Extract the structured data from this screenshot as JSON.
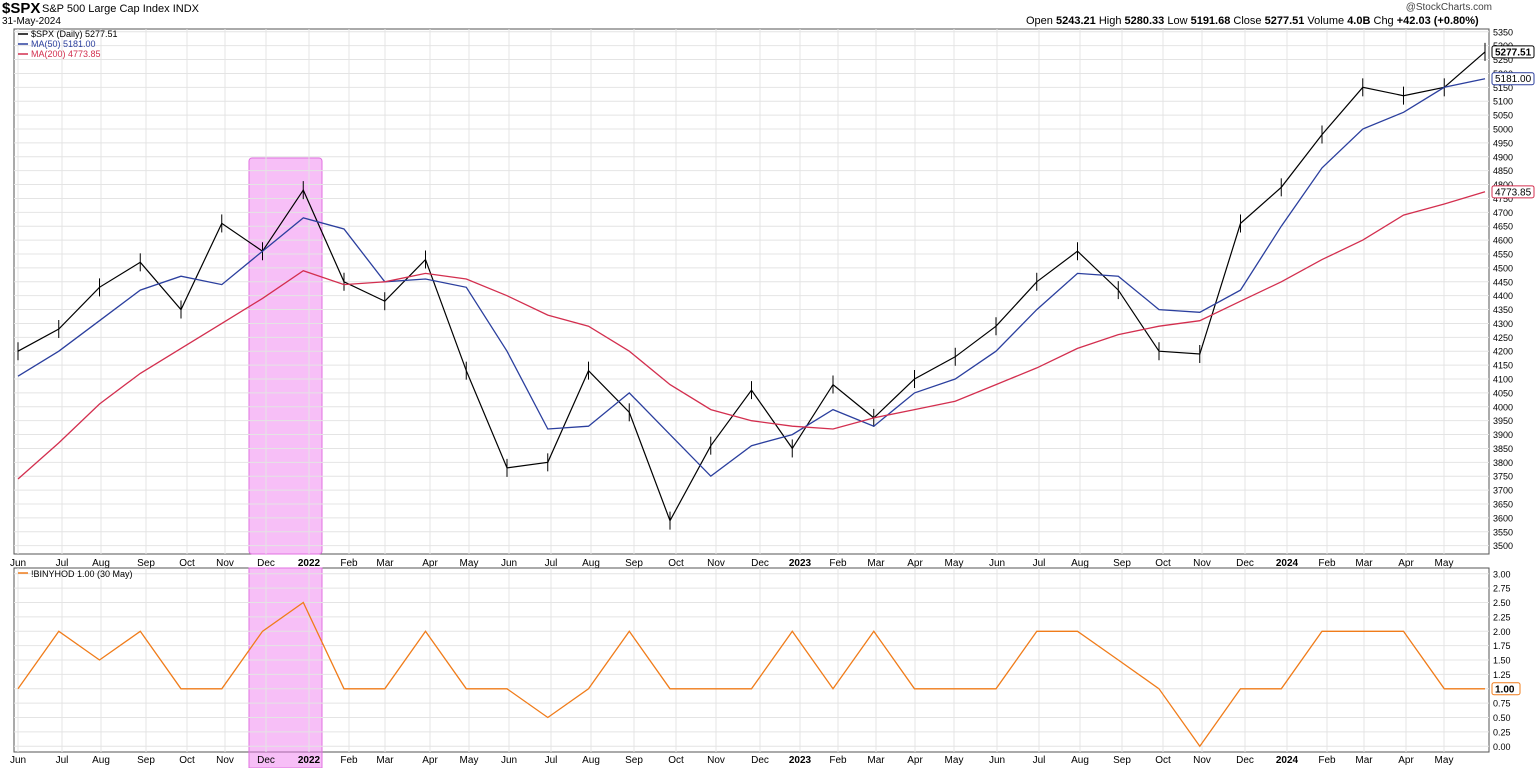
{
  "header": {
    "symbol": "$SPX",
    "symbol_name": "S&P 500 Large Cap Index",
    "exchange": "INDX",
    "date": "31-May-2024",
    "credit": "@StockCharts.com",
    "ohlc": {
      "open_label": "Open",
      "open": "5243.21",
      "high_label": "High",
      "high": "5280.33",
      "low_label": "Low",
      "low": "5191.68",
      "close_label": "Close",
      "close": "5277.51",
      "volume_label": "Volume",
      "volume": "4.0B",
      "chg_label": "Chg",
      "chg": "+42.03 (+0.80%)"
    }
  },
  "colors": {
    "price": "#000000",
    "ma50": "#2b3f9e",
    "ma200": "#d32f4f",
    "indicator": "#f07c1a",
    "highlight": "#f080f0"
  },
  "chart_data": [
    {
      "type": "line",
      "title": "$SPX (Daily) 5277.51",
      "price_style": "ohlc-bars",
      "x_labels": [
        "Jun",
        "Jul",
        "Aug",
        "Sep",
        "Oct",
        "Nov",
        "Dec",
        "2022",
        "Feb",
        "Mar",
        "Apr",
        "May",
        "Jun",
        "Jul",
        "Aug",
        "Sep",
        "Oct",
        "Nov",
        "Dec",
        "2023",
        "Feb",
        "Mar",
        "Apr",
        "May",
        "Jun",
        "Jul",
        "Aug",
        "Sep",
        "Oct",
        "Nov",
        "Dec",
        "2024",
        "Feb",
        "Mar",
        "Apr",
        "May"
      ],
      "bold_x_labels": [
        "2022",
        "2023",
        "2024"
      ],
      "x": [
        0,
        1,
        2,
        3,
        4,
        5,
        6,
        7,
        8,
        9,
        10,
        11,
        12,
        13,
        14,
        15,
        16,
        17,
        18,
        19,
        20,
        21,
        22,
        23,
        24,
        25,
        26,
        27,
        28,
        29,
        30,
        31,
        32,
        33,
        34,
        35,
        36
      ],
      "series": [
        {
          "name": "$SPX (Daily) 5277.51",
          "values": [
            4200,
            4280,
            4430,
            4520,
            4350,
            4660,
            4560,
            4780,
            4450,
            4380,
            4530,
            4130,
            3780,
            3800,
            4130,
            3980,
            3590,
            3860,
            4060,
            3850,
            4080,
            3960,
            4100,
            4180,
            4290,
            4450,
            4560,
            4420,
            4200,
            4190,
            4660,
            4790,
            4980,
            5150,
            5120,
            5150,
            5277.51
          ]
        },
        {
          "name": "MA(50) 5181.00",
          "values": [
            4110,
            4200,
            4310,
            4420,
            4470,
            4440,
            4560,
            4680,
            4640,
            4450,
            4460,
            4430,
            4200,
            3920,
            3930,
            4050,
            3900,
            3750,
            3860,
            3900,
            3990,
            3930,
            4050,
            4100,
            4200,
            4350,
            4480,
            4470,
            4350,
            4340,
            4420,
            4650,
            4860,
            5000,
            5060,
            5150,
            5181
          ]
        },
        {
          "name": "MA(200) 4773.85",
          "values": [
            3740,
            3870,
            4010,
            4120,
            4210,
            4300,
            4390,
            4490,
            4440,
            4450,
            4480,
            4460,
            4400,
            4330,
            4290,
            4200,
            4080,
            3990,
            3950,
            3930,
            3920,
            3960,
            3990,
            4020,
            4080,
            4140,
            4210,
            4260,
            4290,
            4310,
            4380,
            4450,
            4530,
            4600,
            4690,
            4730,
            4773.85
          ]
        }
      ],
      "y_ticks": [
        3500,
        3550,
        3600,
        3650,
        3700,
        3750,
        3800,
        3850,
        3900,
        3950,
        4000,
        4050,
        4100,
        4150,
        4200,
        4250,
        4300,
        4350,
        4400,
        4450,
        4500,
        4550,
        4600,
        4650,
        4700,
        4750,
        4800,
        4850,
        4900,
        4950,
        5000,
        5050,
        5100,
        5150,
        5200,
        5250,
        5300,
        5350
      ],
      "ylim": [
        3470,
        5360
      ],
      "markers": [
        {
          "label": "5277.51",
          "value": 5277.51,
          "series": 0
        },
        {
          "label": "5181.00",
          "value": 5181.0,
          "series": 1
        },
        {
          "label": "4773.85",
          "value": 4773.85,
          "series": 2
        }
      ],
      "grid": true,
      "legend": "top-left"
    },
    {
      "type": "line",
      "title": "!BINYHOD 1.00 (30 May)",
      "x": [
        0,
        1,
        2,
        3,
        4,
        5,
        6,
        7,
        8,
        9,
        10,
        11,
        12,
        13,
        14,
        15,
        16,
        17,
        18,
        19,
        20,
        21,
        22,
        23,
        24,
        25,
        26,
        27,
        28,
        29,
        30,
        31,
        32,
        33,
        34,
        35,
        36
      ],
      "series": [
        {
          "name": "!BINYHOD 1.00 (30 May)",
          "values": [
            1,
            2,
            1.5,
            2,
            1,
            1,
            2,
            2.5,
            1,
            1,
            2,
            1,
            1,
            0.5,
            1,
            2,
            1,
            1,
            1,
            2,
            1,
            2,
            1,
            1,
            1,
            2,
            2,
            1.5,
            1,
            0,
            1,
            1,
            2,
            2,
            2,
            1,
            1
          ]
        }
      ],
      "y_ticks": [
        0,
        0.25,
        0.5,
        0.75,
        1,
        1.25,
        1.5,
        1.75,
        2,
        2.25,
        2.5,
        2.75,
        3
      ],
      "y_tick_labels": [
        "0.00",
        "0.25",
        "0.50",
        "0.75",
        "1.00",
        "1.25",
        "1.50",
        "1.75",
        "2.00",
        "2.25",
        "2.50",
        "2.75",
        "3.00"
      ],
      "ylim": [
        -0.1,
        3.1
      ],
      "markers": [
        {
          "label": "1.00",
          "value": 1
        }
      ],
      "grid": true,
      "legend": "top-left"
    }
  ]
}
